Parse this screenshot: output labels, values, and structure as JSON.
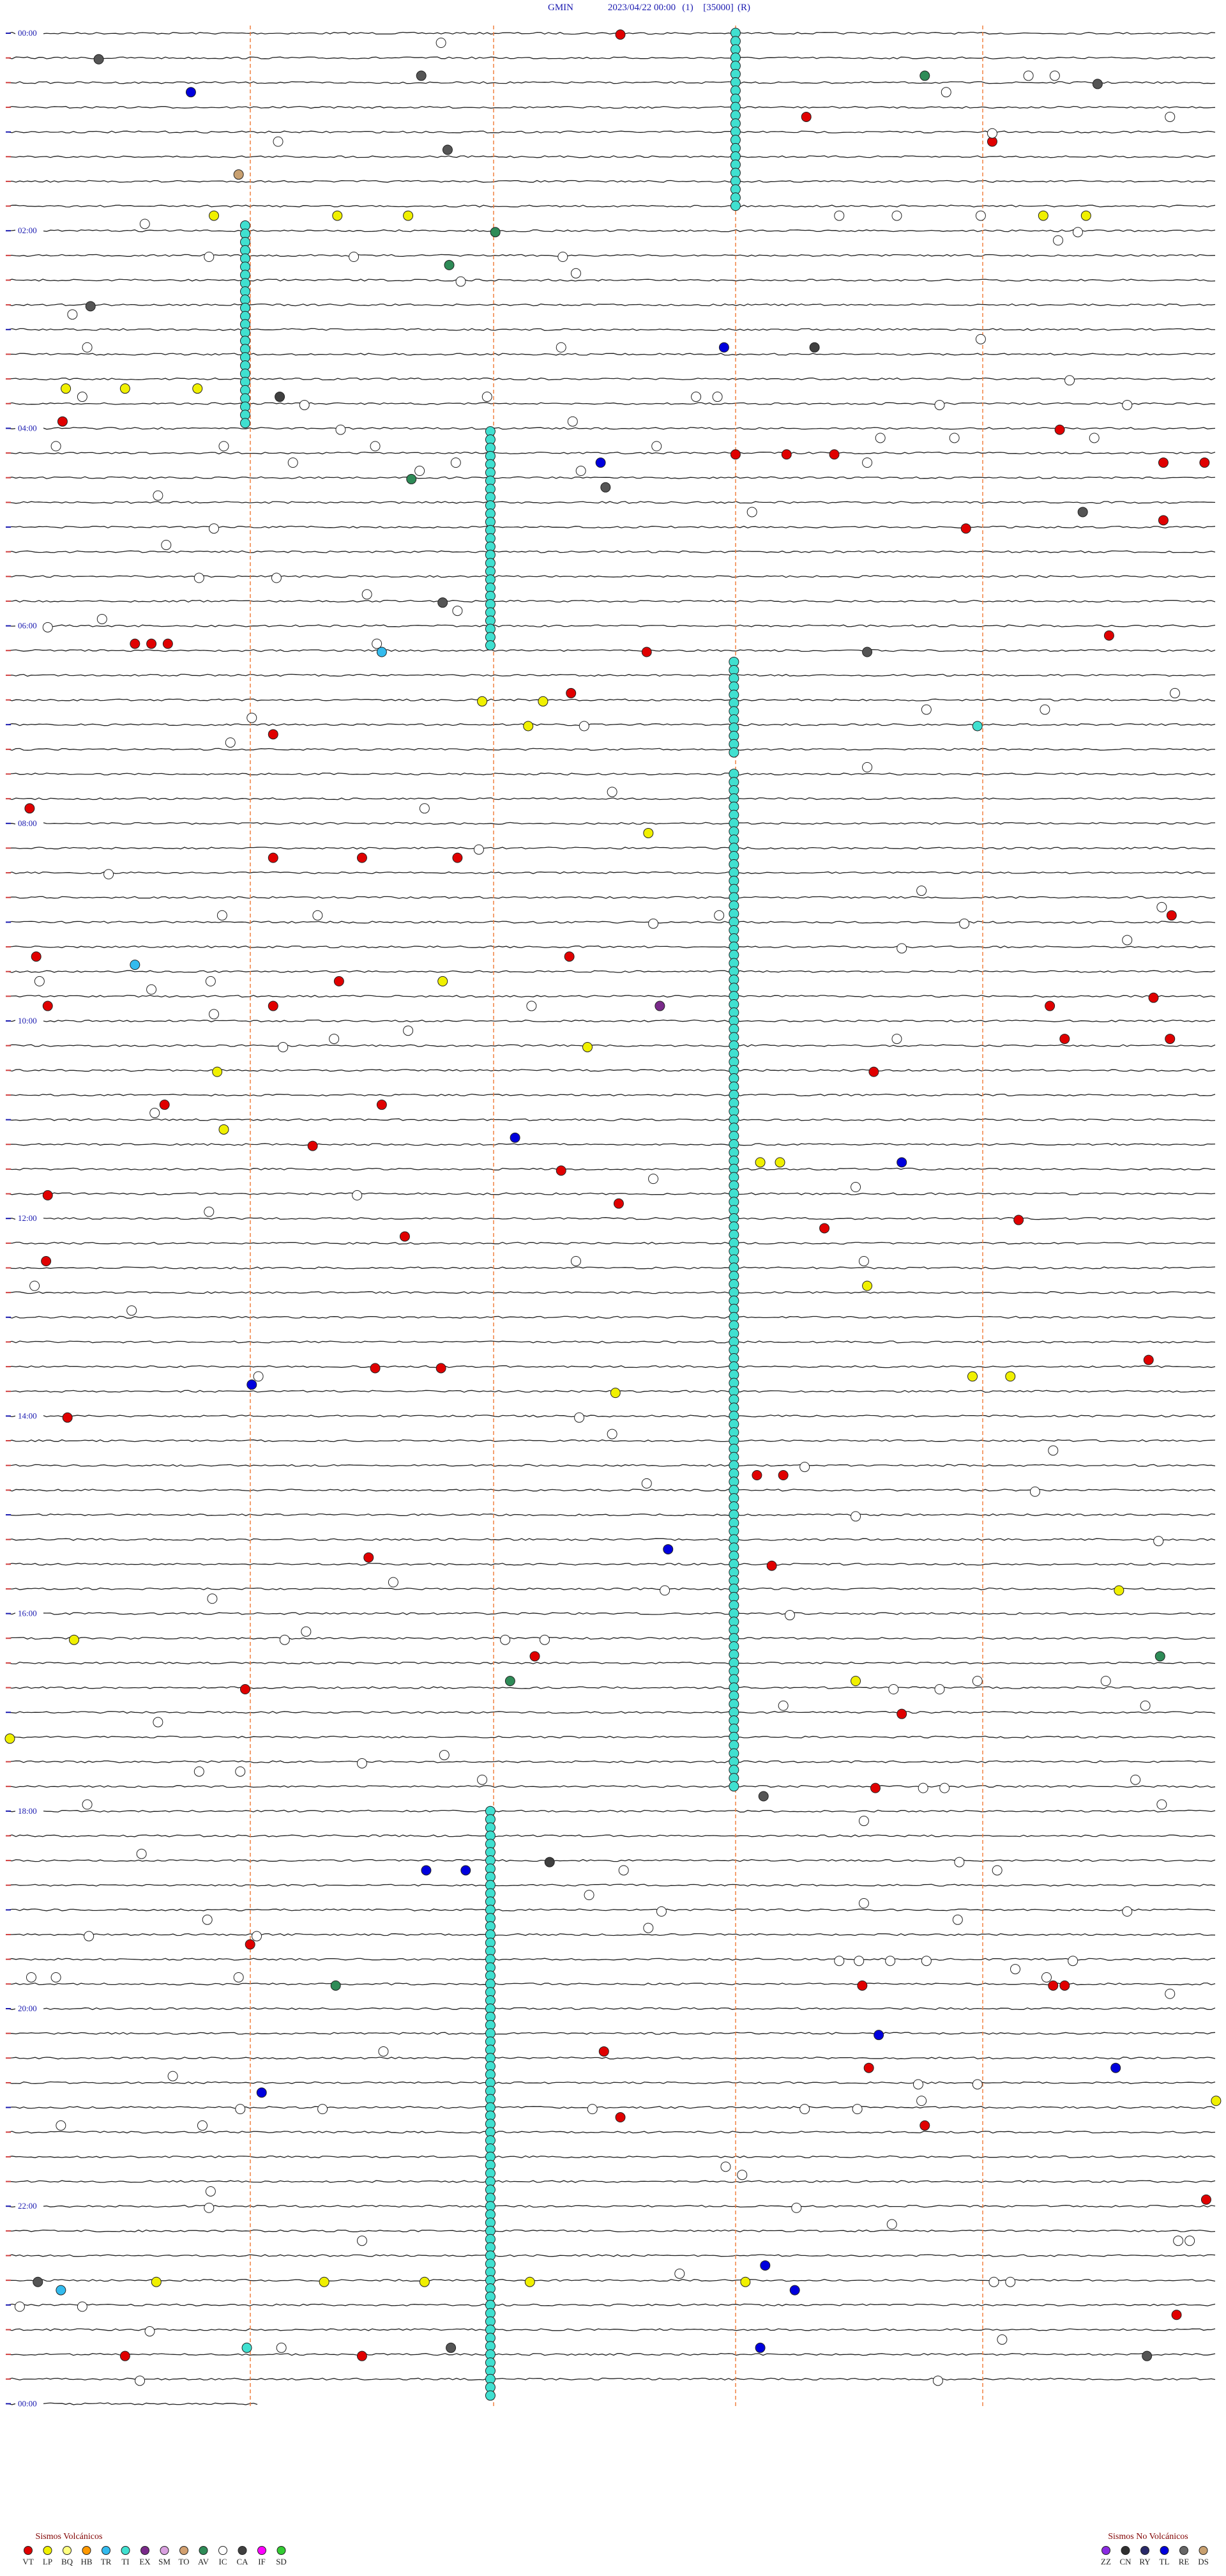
{
  "header": {
    "station": "GMIN",
    "datetime": "2023/04/22 00:00",
    "channel": "(1)",
    "scale": "[35000]",
    "mode": "(R)"
  },
  "time_labels": [
    "00:00",
    "02:00",
    "04:00",
    "06:00",
    "08:00",
    "10:00",
    "12:00",
    "14:00",
    "16:00",
    "18:00",
    "20:00",
    "22:00",
    "00:00"
  ],
  "legend": {
    "volcanic": {
      "title": "Sismos Volcánicos",
      "items": [
        {
          "code": "VT",
          "color": "#e00000"
        },
        {
          "code": "LP",
          "color": "#f0f000"
        },
        {
          "code": "BQ",
          "color": "#ffff80"
        },
        {
          "code": "HB",
          "color": "#ff9900"
        },
        {
          "code": "TR",
          "color": "#33bbee"
        },
        {
          "code": "TI",
          "color": "#40e0d0"
        },
        {
          "code": "EX",
          "color": "#7a2a8a"
        },
        {
          "code": "SM",
          "color": "#d9a0e0"
        },
        {
          "code": "TO",
          "color": "#d2a070"
        },
        {
          "code": "AV",
          "color": "#2e8b57"
        },
        {
          "code": "IC",
          "color": "#ffffff"
        },
        {
          "code": "CA",
          "color": "#404040"
        },
        {
          "code": "IF",
          "color": "#ff00ff"
        },
        {
          "code": "SD",
          "color": "#33cc33"
        }
      ]
    },
    "non_volcanic": {
      "title": "Sismos No Volcánicos",
      "items": [
        {
          "code": "ZZ",
          "color": "#8a2be2"
        },
        {
          "code": "CN",
          "color": "#303030"
        },
        {
          "code": "RY",
          "color": "#2a2a6a"
        },
        {
          "code": "TL",
          "color": "#0000dd"
        },
        {
          "code": "RE",
          "color": "#666666"
        },
        {
          "code": "DS",
          "color": "#c8a070"
        }
      ]
    }
  }
}
